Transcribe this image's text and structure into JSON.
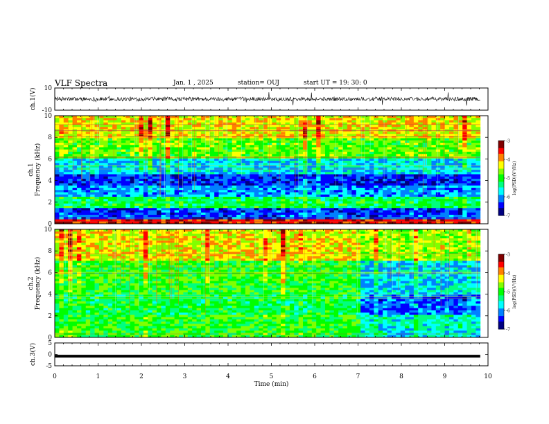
{
  "header": {
    "title": "VLF Spectra",
    "date": "Jan. 1 , 2025",
    "station": "station= OUJ",
    "start_time": "start UT = 19: 30: 0"
  },
  "colors": {
    "colormap": [
      "#000080",
      "#0000ff",
      "#0080ff",
      "#00ffff",
      "#00ff80",
      "#00ff00",
      "#80ff00",
      "#ffff00",
      "#ff8000",
      "#ff0000",
      "#800000"
    ],
    "waveform": "#000000"
  },
  "chart_data": [
    {
      "type": "line",
      "panel": "ch1-waveform",
      "ylabel": "ch.1(V)",
      "ylim": [
        -10,
        10
      ],
      "yticks": [
        "10",
        "-10"
      ],
      "xlim": [
        0,
        10
      ],
      "baseline": 0,
      "description_values": "noise waveform centred near 0 V with sporadic spikes"
    },
    {
      "type": "heatmap",
      "panel": "ch1-spectrogram",
      "ylabel": "ch.1\nFrequency (kHz)",
      "ylim": [
        0,
        10
      ],
      "yticks": [
        "0",
        "2",
        "4",
        "6",
        "8",
        "10"
      ],
      "xlim": [
        0,
        10
      ],
      "colorbar": {
        "label": "log(PSD)(V²/Hz)",
        "range": [
          -7,
          -3
        ],
        "ticks": [
          "-3",
          "-4",
          "-5",
          "-6",
          "-7"
        ]
      },
      "band_levels": [
        {
          "f": [
            0,
            0.5
          ],
          "level": -3.5
        },
        {
          "f": [
            0.5,
            1.5
          ],
          "level": -6.3
        },
        {
          "f": [
            1.5,
            2.5
          ],
          "level": -5.2
        },
        {
          "f": [
            2.5,
            3.5
          ],
          "level": -6.0
        },
        {
          "f": [
            3.5,
            4.5
          ],
          "level": -6.4
        },
        {
          "f": [
            4.5,
            6.0
          ],
          "level": -5.8
        },
        {
          "f": [
            6.0,
            8.0
          ],
          "level": -4.8
        },
        {
          "f": [
            8.0,
            10.0
          ],
          "level": -4.3
        }
      ]
    },
    {
      "type": "heatmap",
      "panel": "ch2-spectrogram",
      "ylabel": "ch.2\nFrequency (kHz)",
      "ylim": [
        0,
        10
      ],
      "yticks": [
        "0",
        "2",
        "4",
        "6",
        "8",
        "10"
      ],
      "xlim": [
        0,
        10
      ],
      "change_time_min": 7.05,
      "colorbar": {
        "label": "log(PSD)(V²/Hz)",
        "range": [
          -7,
          -3
        ],
        "ticks": [
          "-3",
          "-4",
          "-5",
          "-6",
          "-7"
        ]
      },
      "band_levels_before": [
        {
          "f": [
            0,
            2
          ],
          "level": -5.0
        },
        {
          "f": [
            2,
            4
          ],
          "level": -5.2
        },
        {
          "f": [
            4,
            7
          ],
          "level": -5.0
        },
        {
          "f": [
            7,
            10
          ],
          "level": -4.3
        }
      ],
      "band_levels_after": [
        {
          "f": [
            0,
            2
          ],
          "level": -5.6
        },
        {
          "f": [
            2,
            4
          ],
          "level": -6.2
        },
        {
          "f": [
            4,
            7
          ],
          "level": -5.8
        },
        {
          "f": [
            7,
            10
          ],
          "level": -4.6
        }
      ]
    },
    {
      "type": "line",
      "panel": "ch3-waveform",
      "ylabel": "ch.3(V)",
      "ylim": [
        -5,
        5
      ],
      "yticks": [
        "5",
        "0",
        "-5"
      ],
      "xlim": [
        0,
        10
      ],
      "value": -0.8
    }
  ],
  "xaxis": {
    "label": "Time (min)",
    "ticks": [
      "0",
      "1",
      "2",
      "3",
      "4",
      "5",
      "6",
      "7",
      "8",
      "9",
      "10"
    ],
    "data_end_min": 9.82
  }
}
